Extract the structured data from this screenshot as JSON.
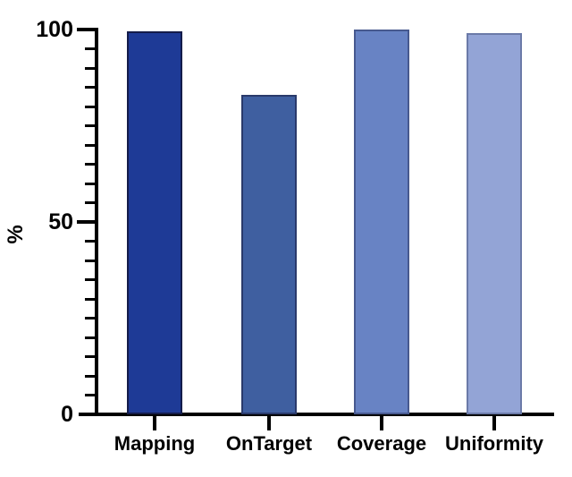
{
  "chart_data": {
    "type": "bar",
    "title": "",
    "categories": [
      "Mapping",
      "OnTarget",
      "Coverage",
      "Uniformity"
    ],
    "values": [
      99.5,
      83,
      100,
      99
    ],
    "bar_colors": [
      "#1e3a96",
      "#3f5fa0",
      "#6883c4",
      "#93a4d6"
    ],
    "bar_border_colors": [
      "#141c4a",
      "#2a3a6b",
      "#47598f",
      "#6b7aa8"
    ],
    "xlabel": "",
    "ylabel": "%",
    "ylim": [
      0,
      100
    ],
    "y_major_ticks": [
      0,
      50,
      100
    ],
    "y_minor_tick_step": 5,
    "grid": false,
    "legend_position": "none",
    "axis_color": "#000000",
    "background_color": "#ffffff"
  }
}
